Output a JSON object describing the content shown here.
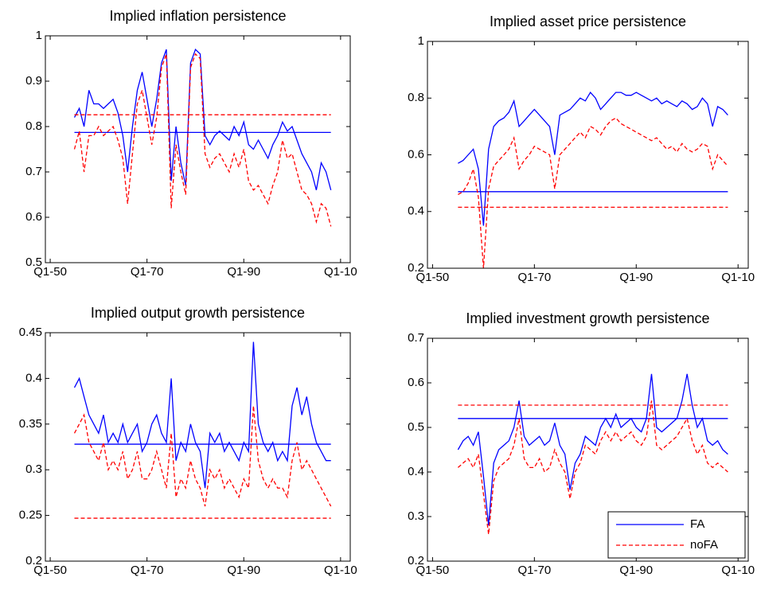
{
  "chart_data": [
    {
      "type": "line",
      "title": "Implied inflation persistence",
      "xlim": [
        1949,
        2012
      ],
      "xticks": [
        {
          "value": 1950,
          "label": "Q1-50"
        },
        {
          "value": 1970,
          "label": "Q1-70"
        },
        {
          "value": 1990,
          "label": "Q1-90"
        },
        {
          "value": 2010,
          "label": "Q1-10"
        }
      ],
      "ylim": [
        0.5,
        1
      ],
      "yticks": [
        0.5,
        0.6,
        0.7,
        0.8,
        0.9,
        1
      ],
      "x": [
        1955,
        1956,
        1957,
        1958,
        1959,
        1960,
        1961,
        1962,
        1963,
        1964,
        1965,
        1966,
        1967,
        1968,
        1969,
        1970,
        1971,
        1972,
        1973,
        1974,
        1975,
        1976,
        1977,
        1978,
        1979,
        1980,
        1981,
        1982,
        1983,
        1984,
        1985,
        1986,
        1987,
        1988,
        1989,
        1990,
        1991,
        1992,
        1993,
        1994,
        1995,
        1996,
        1997,
        1998,
        1999,
        2000,
        2001,
        2002,
        2003,
        2004,
        2005,
        2006,
        2007,
        2008
      ],
      "series": [
        {
          "color": "#0000ff",
          "dash": false,
          "constant": 0.787,
          "values": [
            0.82,
            0.84,
            0.8,
            0.88,
            0.85,
            0.85,
            0.84,
            0.85,
            0.86,
            0.83,
            0.78,
            0.7,
            0.8,
            0.88,
            0.92,
            0.86,
            0.8,
            0.86,
            0.94,
            0.97,
            0.68,
            0.8,
            0.72,
            0.67,
            0.94,
            0.97,
            0.96,
            0.78,
            0.76,
            0.78,
            0.79,
            0.78,
            0.77,
            0.8,
            0.78,
            0.81,
            0.76,
            0.75,
            0.77,
            0.75,
            0.73,
            0.76,
            0.78,
            0.81,
            0.79,
            0.8,
            0.77,
            0.74,
            0.72,
            0.7,
            0.66,
            0.72,
            0.7,
            0.66
          ]
        },
        {
          "color": "#ff0000",
          "dash": true,
          "constant": 0.826,
          "values": [
            0.75,
            0.79,
            0.7,
            0.78,
            0.78,
            0.8,
            0.78,
            0.79,
            0.8,
            0.77,
            0.73,
            0.63,
            0.74,
            0.85,
            0.88,
            0.82,
            0.76,
            0.82,
            0.93,
            0.96,
            0.62,
            0.76,
            0.7,
            0.65,
            0.93,
            0.96,
            0.95,
            0.74,
            0.71,
            0.73,
            0.74,
            0.72,
            0.7,
            0.74,
            0.71,
            0.75,
            0.68,
            0.66,
            0.67,
            0.65,
            0.63,
            0.67,
            0.7,
            0.77,
            0.73,
            0.74,
            0.7,
            0.66,
            0.65,
            0.63,
            0.59,
            0.63,
            0.62,
            0.58
          ]
        }
      ]
    },
    {
      "type": "line",
      "title": "Implied asset price persistence",
      "xlim": [
        1949,
        2012
      ],
      "xticks": [
        {
          "value": 1950,
          "label": "Q1-50"
        },
        {
          "value": 1970,
          "label": "Q1-70"
        },
        {
          "value": 1990,
          "label": "Q1-90"
        },
        {
          "value": 2010,
          "label": "Q1-10"
        }
      ],
      "ylim": [
        0.2,
        1
      ],
      "yticks": [
        0.2,
        0.4,
        0.6,
        0.8,
        1
      ],
      "x": [
        1955,
        1956,
        1957,
        1958,
        1959,
        1960,
        1961,
        1962,
        1963,
        1964,
        1965,
        1966,
        1967,
        1968,
        1969,
        1970,
        1971,
        1972,
        1973,
        1974,
        1975,
        1976,
        1977,
        1978,
        1979,
        1980,
        1981,
        1982,
        1983,
        1984,
        1985,
        1986,
        1987,
        1988,
        1989,
        1990,
        1991,
        1992,
        1993,
        1994,
        1995,
        1996,
        1997,
        1998,
        1999,
        2000,
        2001,
        2002,
        2003,
        2004,
        2005,
        2006,
        2007,
        2008
      ],
      "series": [
        {
          "color": "#0000ff",
          "dash": false,
          "constant": 0.47,
          "values": [
            0.57,
            0.58,
            0.6,
            0.62,
            0.55,
            0.35,
            0.62,
            0.7,
            0.72,
            0.73,
            0.75,
            0.79,
            0.7,
            0.72,
            0.74,
            0.76,
            0.74,
            0.72,
            0.7,
            0.6,
            0.74,
            0.75,
            0.76,
            0.78,
            0.8,
            0.79,
            0.82,
            0.8,
            0.76,
            0.78,
            0.8,
            0.82,
            0.82,
            0.81,
            0.81,
            0.82,
            0.81,
            0.8,
            0.79,
            0.8,
            0.78,
            0.79,
            0.78,
            0.77,
            0.79,
            0.78,
            0.76,
            0.77,
            0.8,
            0.78,
            0.7,
            0.77,
            0.76,
            0.74
          ]
        },
        {
          "color": "#ff0000",
          "dash": true,
          "constant": 0.415,
          "values": [
            0.46,
            0.47,
            0.5,
            0.55,
            0.45,
            0.2,
            0.48,
            0.56,
            0.58,
            0.6,
            0.62,
            0.66,
            0.55,
            0.58,
            0.6,
            0.63,
            0.62,
            0.61,
            0.6,
            0.48,
            0.6,
            0.62,
            0.64,
            0.66,
            0.68,
            0.66,
            0.7,
            0.69,
            0.67,
            0.7,
            0.72,
            0.73,
            0.71,
            0.7,
            0.69,
            0.68,
            0.67,
            0.66,
            0.65,
            0.66,
            0.64,
            0.62,
            0.63,
            0.61,
            0.64,
            0.62,
            0.61,
            0.62,
            0.64,
            0.63,
            0.55,
            0.6,
            0.58,
            0.56
          ]
        }
      ]
    },
    {
      "type": "line",
      "title": "Implied output growth persistence",
      "xlim": [
        1949,
        2012
      ],
      "xticks": [
        {
          "value": 1950,
          "label": "Q1-50"
        },
        {
          "value": 1970,
          "label": "Q1-70"
        },
        {
          "value": 1990,
          "label": "Q1-90"
        },
        {
          "value": 2010,
          "label": "Q1-10"
        }
      ],
      "ylim": [
        0.2,
        0.45
      ],
      "yticks": [
        0.2,
        0.25,
        0.3,
        0.35,
        0.4,
        0.45
      ],
      "x": [
        1955,
        1956,
        1957,
        1958,
        1959,
        1960,
        1961,
        1962,
        1963,
        1964,
        1965,
        1966,
        1967,
        1968,
        1969,
        1970,
        1971,
        1972,
        1973,
        1974,
        1975,
        1976,
        1977,
        1978,
        1979,
        1980,
        1981,
        1982,
        1983,
        1984,
        1985,
        1986,
        1987,
        1988,
        1989,
        1990,
        1991,
        1992,
        1993,
        1994,
        1995,
        1996,
        1997,
        1998,
        1999,
        2000,
        2001,
        2002,
        2003,
        2004,
        2005,
        2006,
        2007,
        2008
      ],
      "series": [
        {
          "color": "#0000ff",
          "dash": false,
          "constant": 0.328,
          "values": [
            0.39,
            0.4,
            0.38,
            0.36,
            0.35,
            0.34,
            0.36,
            0.33,
            0.34,
            0.33,
            0.35,
            0.33,
            0.34,
            0.35,
            0.32,
            0.33,
            0.35,
            0.36,
            0.34,
            0.33,
            0.4,
            0.31,
            0.33,
            0.32,
            0.35,
            0.33,
            0.32,
            0.28,
            0.34,
            0.33,
            0.34,
            0.32,
            0.33,
            0.32,
            0.31,
            0.33,
            0.32,
            0.44,
            0.35,
            0.33,
            0.32,
            0.33,
            0.31,
            0.32,
            0.31,
            0.37,
            0.39,
            0.36,
            0.38,
            0.35,
            0.33,
            0.32,
            0.31,
            0.31
          ]
        },
        {
          "color": "#ff0000",
          "dash": true,
          "constant": 0.247,
          "values": [
            0.34,
            0.35,
            0.36,
            0.33,
            0.32,
            0.31,
            0.33,
            0.3,
            0.31,
            0.3,
            0.32,
            0.29,
            0.3,
            0.32,
            0.29,
            0.29,
            0.3,
            0.32,
            0.3,
            0.28,
            0.34,
            0.27,
            0.29,
            0.28,
            0.31,
            0.29,
            0.28,
            0.26,
            0.3,
            0.29,
            0.3,
            0.28,
            0.29,
            0.28,
            0.27,
            0.29,
            0.28,
            0.37,
            0.31,
            0.29,
            0.28,
            0.29,
            0.28,
            0.28,
            0.27,
            0.31,
            0.33,
            0.3,
            0.31,
            0.3,
            0.29,
            0.28,
            0.27,
            0.26
          ]
        }
      ]
    },
    {
      "type": "line",
      "title": "Implied investment growth persistence",
      "xlim": [
        1949,
        2012
      ],
      "xticks": [
        {
          "value": 1950,
          "label": "Q1-50"
        },
        {
          "value": 1970,
          "label": "Q1-70"
        },
        {
          "value": 1990,
          "label": "Q1-90"
        },
        {
          "value": 2010,
          "label": "Q1-10"
        }
      ],
      "ylim": [
        0.2,
        0.7
      ],
      "yticks": [
        0.2,
        0.3,
        0.4,
        0.5,
        0.6,
        0.7
      ],
      "legend": "lower right",
      "x": [
        1955,
        1956,
        1957,
        1958,
        1959,
        1960,
        1961,
        1962,
        1963,
        1964,
        1965,
        1966,
        1967,
        1968,
        1969,
        1970,
        1971,
        1972,
        1973,
        1974,
        1975,
        1976,
        1977,
        1978,
        1979,
        1980,
        1981,
        1982,
        1983,
        1984,
        1985,
        1986,
        1987,
        1988,
        1989,
        1990,
        1991,
        1992,
        1993,
        1994,
        1995,
        1996,
        1997,
        1998,
        1999,
        2000,
        2001,
        2002,
        2003,
        2004,
        2005,
        2006,
        2007,
        2008
      ],
      "series": [
        {
          "name": "FA",
          "color": "#0000ff",
          "dash": false,
          "constant": 0.52,
          "values": [
            0.45,
            0.47,
            0.48,
            0.46,
            0.49,
            0.39,
            0.28,
            0.42,
            0.45,
            0.46,
            0.47,
            0.5,
            0.56,
            0.48,
            0.46,
            0.47,
            0.48,
            0.46,
            0.47,
            0.51,
            0.46,
            0.44,
            0.36,
            0.42,
            0.44,
            0.48,
            0.47,
            0.46,
            0.5,
            0.52,
            0.5,
            0.53,
            0.5,
            0.51,
            0.52,
            0.5,
            0.49,
            0.52,
            0.62,
            0.5,
            0.49,
            0.5,
            0.51,
            0.52,
            0.56,
            0.62,
            0.55,
            0.5,
            0.52,
            0.47,
            0.46,
            0.47,
            0.45,
            0.44
          ]
        },
        {
          "name": "noFA",
          "color": "#ff0000",
          "dash": true,
          "constant": 0.55,
          "values": [
            0.41,
            0.42,
            0.43,
            0.41,
            0.44,
            0.35,
            0.26,
            0.38,
            0.41,
            0.42,
            0.43,
            0.46,
            0.52,
            0.43,
            0.41,
            0.41,
            0.43,
            0.4,
            0.41,
            0.45,
            0.42,
            0.4,
            0.34,
            0.4,
            0.42,
            0.46,
            0.45,
            0.44,
            0.47,
            0.49,
            0.47,
            0.49,
            0.47,
            0.48,
            0.49,
            0.47,
            0.46,
            0.48,
            0.56,
            0.46,
            0.45,
            0.46,
            0.47,
            0.48,
            0.5,
            0.52,
            0.47,
            0.44,
            0.46,
            0.42,
            0.41,
            0.42,
            0.41,
            0.4
          ]
        }
      ]
    }
  ]
}
